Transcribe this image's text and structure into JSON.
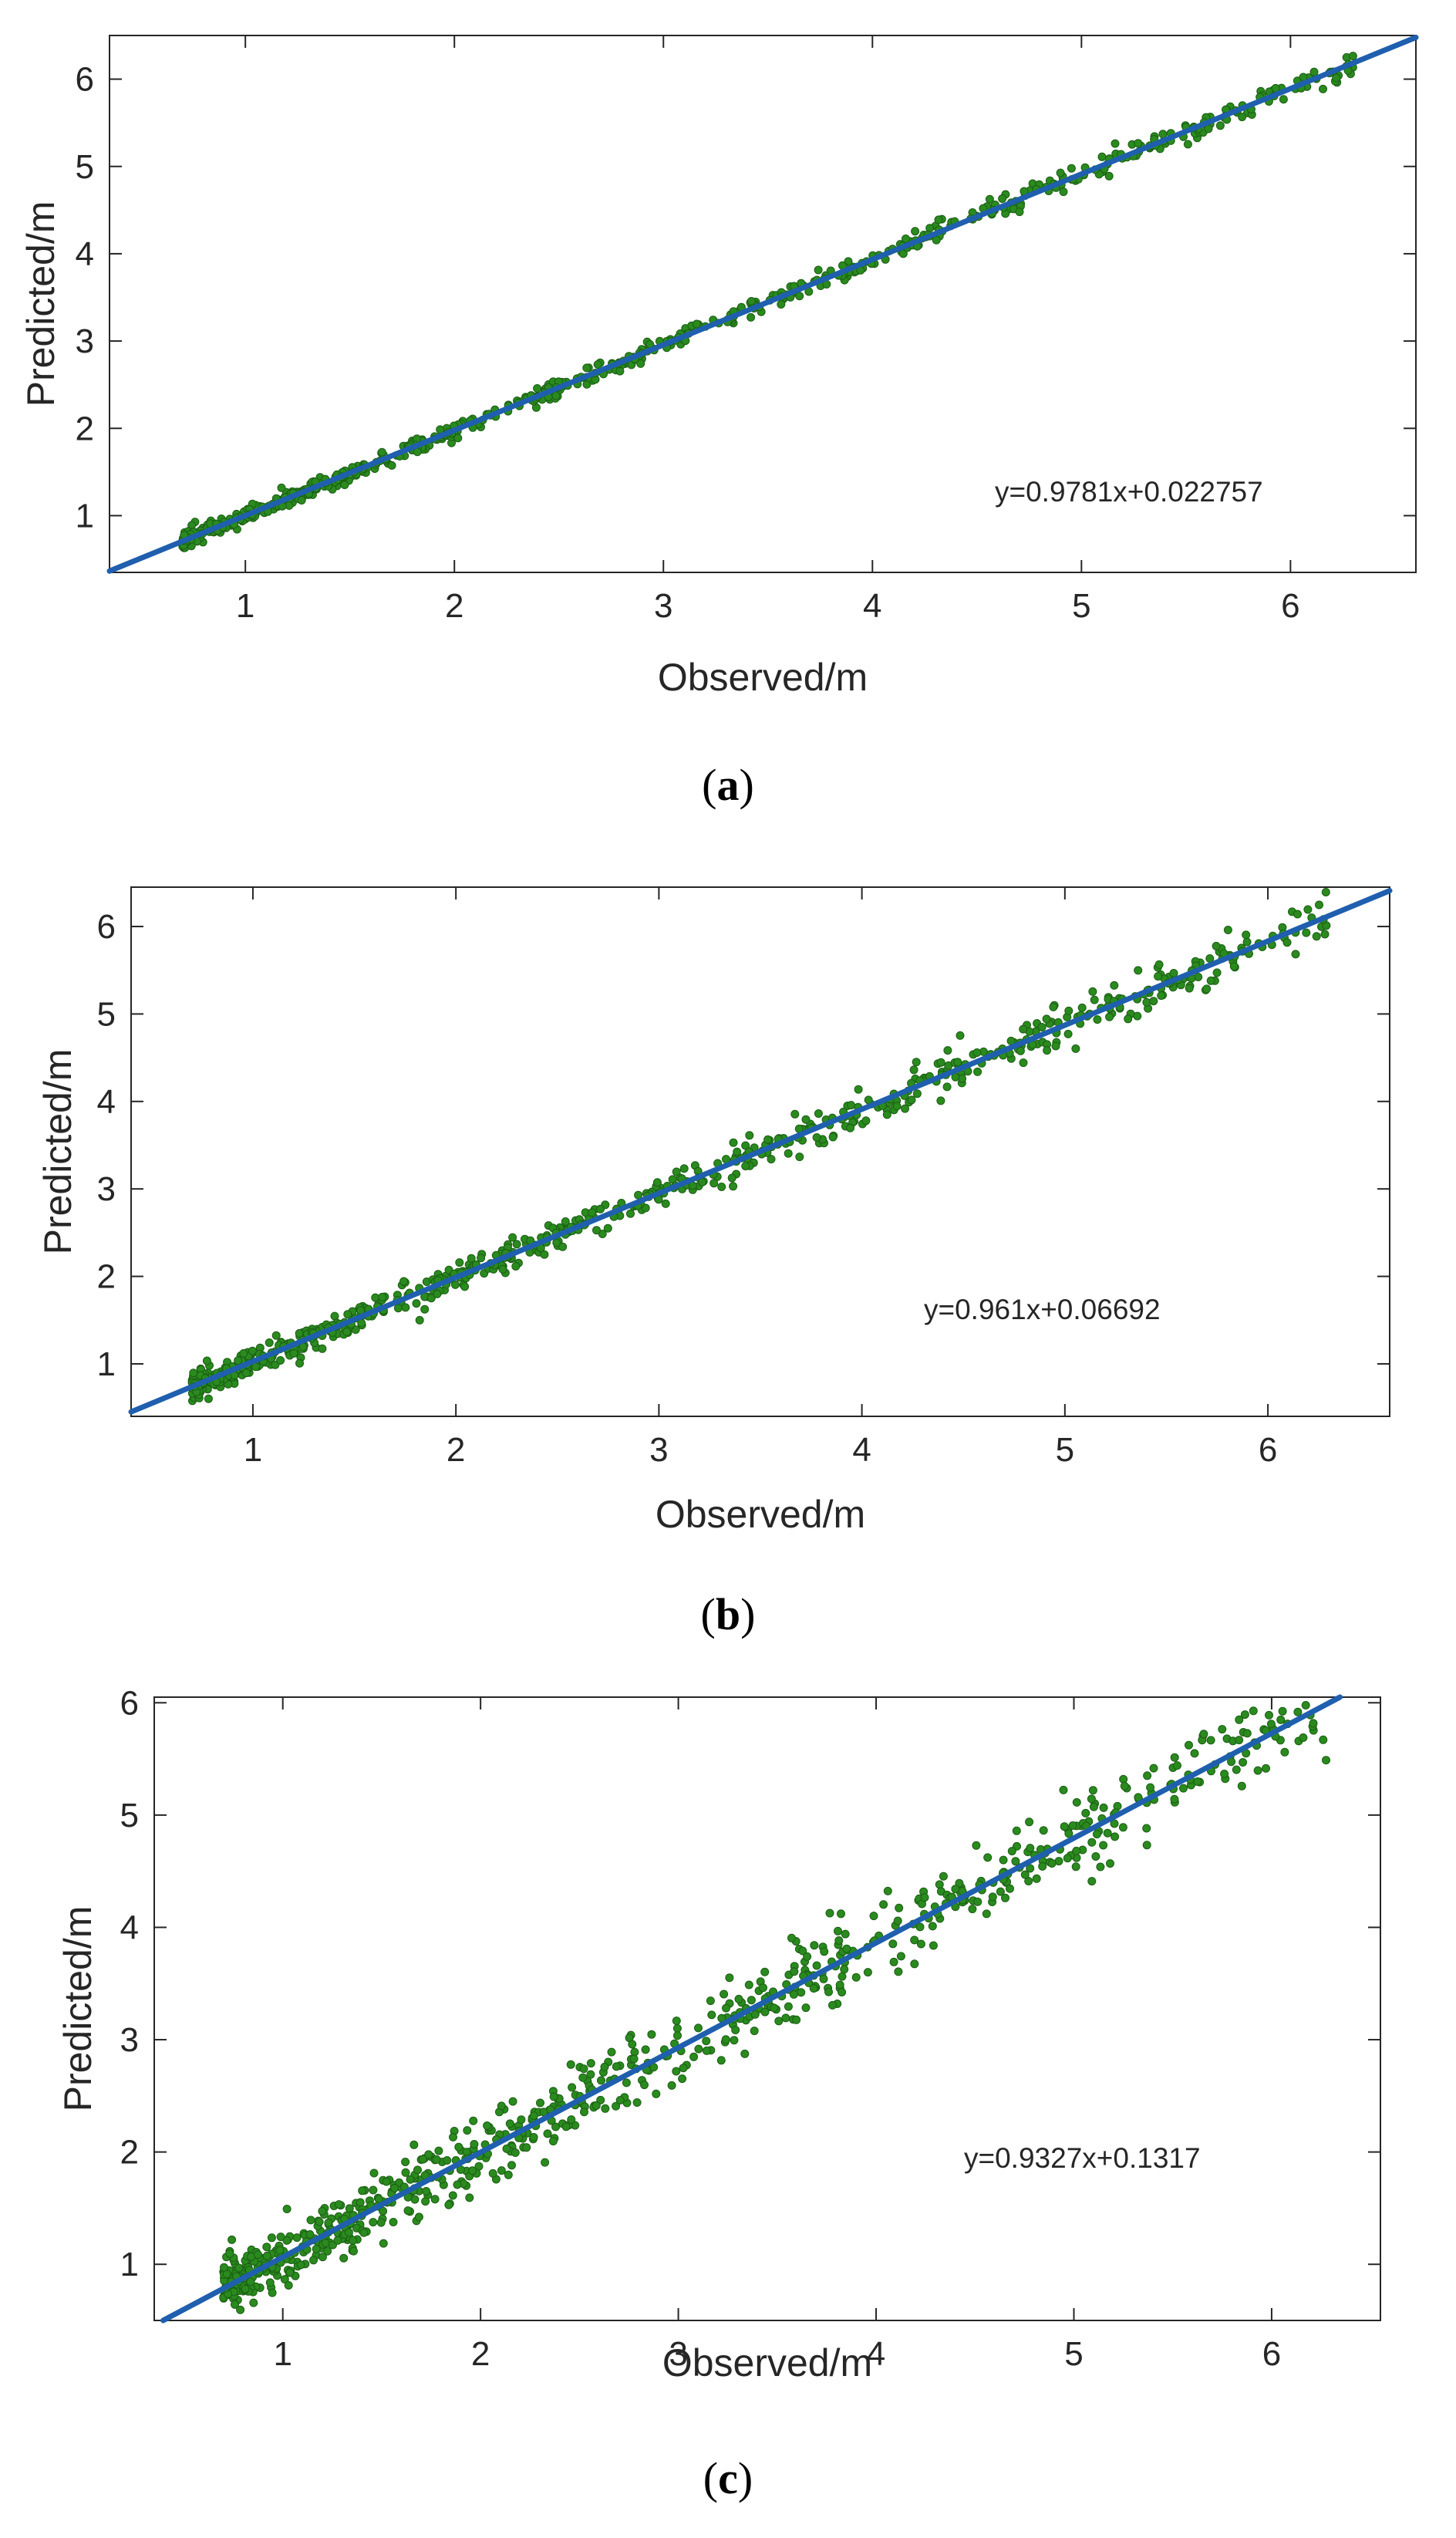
{
  "colors": {
    "points": "#2a8a1e",
    "point_edge": "#1b5e14",
    "fit_line": "#1f5fae",
    "axes": "#262626"
  },
  "chart_data": [
    {
      "type": "scatter",
      "panel_label": "a",
      "xlabel": "Observed/m",
      "ylabel": "Predicted/m",
      "xlim": [
        0.35,
        6.6
      ],
      "ylim": [
        0.35,
        6.5
      ],
      "xticks": [
        "1",
        "2",
        "3",
        "4",
        "5",
        "6"
      ],
      "yticks": [
        "1",
        "2",
        "3",
        "4",
        "5",
        "6"
      ],
      "grid": false,
      "annotation": "y=0.9781x+0.022757",
      "fit": {
        "slope": 0.9781,
        "intercept": 0.022757
      },
      "scatter": {
        "n": 700,
        "x_min": 0.7,
        "x_max": 6.3,
        "residual_sd": 0.07,
        "seed": 11
      }
    },
    {
      "type": "scatter",
      "panel_label": "b",
      "xlabel": "Observed/m",
      "ylabel": "Predicted/m",
      "xlim": [
        0.4,
        6.6
      ],
      "ylim": [
        0.4,
        6.45
      ],
      "xticks": [
        "1",
        "2",
        "3",
        "4",
        "5",
        "6"
      ],
      "yticks": [
        "1",
        "2",
        "3",
        "4",
        "5",
        "6"
      ],
      "grid": false,
      "annotation": "y=0.961x+0.06692",
      "fit": {
        "slope": 0.961,
        "intercept": 0.06692
      },
      "scatter": {
        "n": 750,
        "x_min": 0.7,
        "x_max": 6.3,
        "residual_sd": 0.12,
        "seed": 23
      }
    },
    {
      "type": "scatter",
      "panel_label": "c",
      "xlabel": "Observed/m",
      "ylabel": "Predicted/m",
      "xlim": [
        0.35,
        6.55
      ],
      "ylim": [
        0.5,
        6.05
      ],
      "xticks": [
        "1",
        "2",
        "3",
        "4",
        "5",
        "6"
      ],
      "yticks": [
        "1",
        "2",
        "3",
        "4",
        "5",
        "6"
      ],
      "grid": false,
      "annotation": "y=0.9327x+0.1317",
      "fit": {
        "slope": 0.9327,
        "intercept": 0.1317
      },
      "scatter": {
        "n": 800,
        "x_min": 0.7,
        "x_max": 6.3,
        "residual_sd": 0.2,
        "seed": 37
      }
    }
  ]
}
